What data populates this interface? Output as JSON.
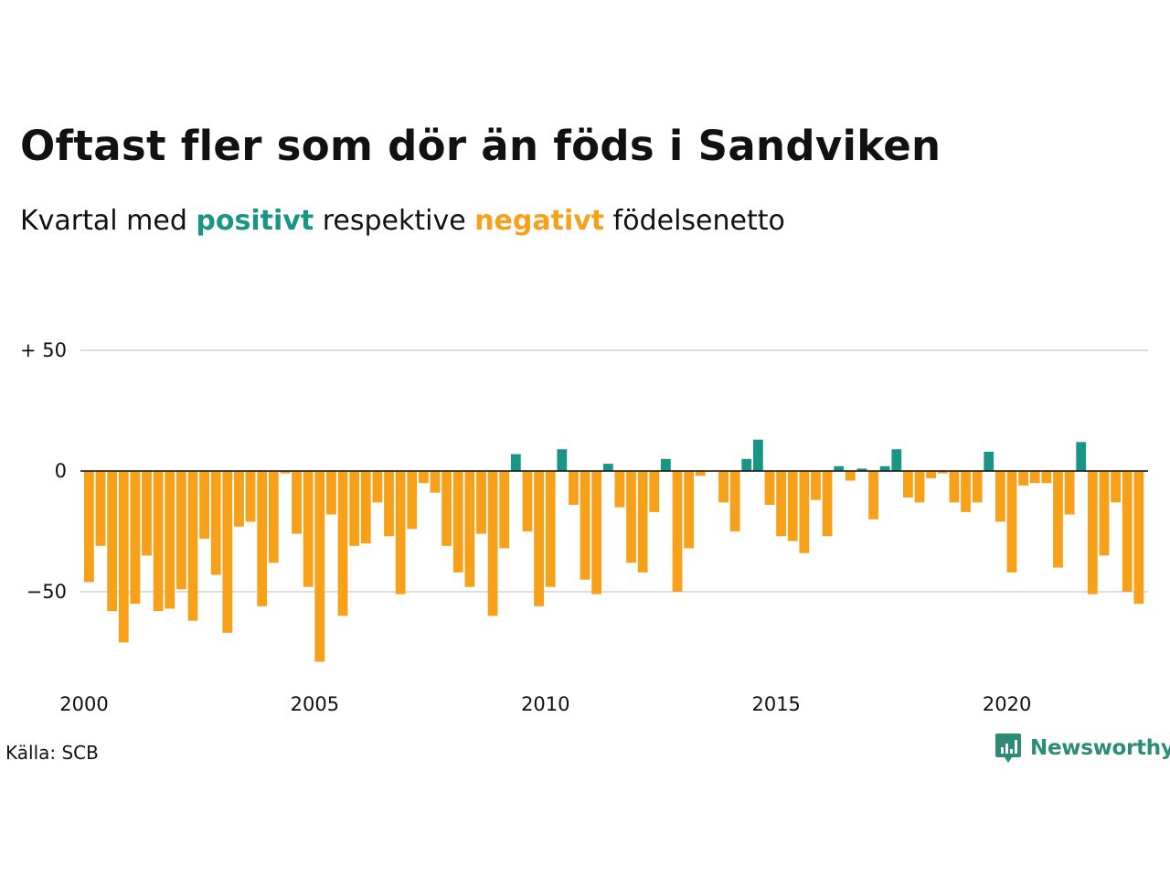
{
  "title": "Oftast fler som dör än föds i Sandviken",
  "subtitle": {
    "prefix": "Kvartal med ",
    "positive_word": "positivt",
    "middle": " respektive ",
    "negative_word": "negativt",
    "suffix": " födelsenetto"
  },
  "source": "Källa: SCB",
  "brand": {
    "name": "Newsworthy",
    "icon": "newsworthy-bar-chart-icon"
  },
  "colors": {
    "positive": "#1a9585",
    "negative": "#f7a11a",
    "grid": "#dddde3",
    "brand": "#2e8b78"
  },
  "chart_data": {
    "type": "bar",
    "x_start": "2000Q1",
    "frequency": "quarterly",
    "ylim": [
      -85,
      55
    ],
    "y_ticks": [
      50,
      0,
      -50
    ],
    "y_tick_labels": [
      "+ 50",
      "0",
      "−50"
    ],
    "x_tick_labels": [
      "2000",
      "2005",
      "2010",
      "2015",
      "2020"
    ],
    "values": [
      -46,
      -31,
      -58,
      -71,
      -55,
      -35,
      -58,
      -57,
      -49,
      -62,
      -28,
      -43,
      -67,
      -23,
      -21,
      -56,
      -38,
      -1,
      -26,
      -48,
      -79,
      -18,
      -60,
      -31,
      -30,
      -13,
      -27,
      -51,
      -24,
      -5,
      -9,
      -31,
      -42,
      -48,
      -26,
      -60,
      -32,
      7,
      -25,
      -56,
      -48,
      9,
      -14,
      -45,
      -51,
      3,
      -15,
      -38,
      -42,
      -17,
      5,
      -50,
      -32,
      -2,
      0,
      -13,
      -25,
      5,
      13,
      -14,
      -27,
      -29,
      -34,
      -12,
      -27,
      2,
      -4,
      1,
      -20,
      2,
      9,
      -11,
      -13,
      -3,
      -1,
      -13,
      -17,
      -13,
      8,
      -21,
      -42,
      -6,
      -5,
      -5,
      -40,
      -18,
      12,
      -51,
      -35,
      -13,
      -50,
      -55
    ]
  }
}
